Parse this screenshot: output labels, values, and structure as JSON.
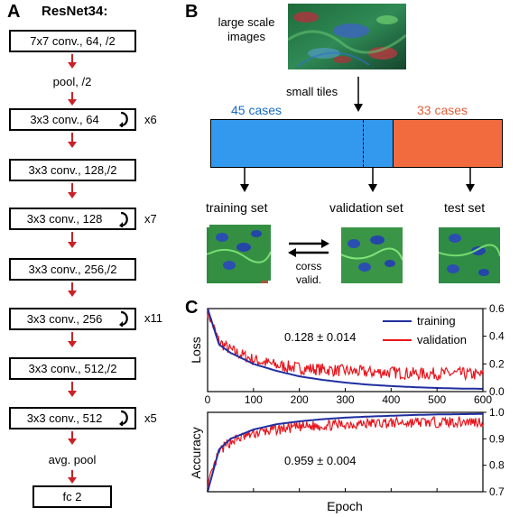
{
  "panel_a": {
    "letter": "A",
    "title": "ResNet34:",
    "boxes": [
      {
        "label": "7x7 conv., 64, /2"
      },
      {
        "label": "3x3 conv., 64",
        "repeat": "x6"
      },
      {
        "label": "3x3 conv., 128,/2"
      },
      {
        "label": "3x3 conv., 128",
        "repeat": "x7"
      },
      {
        "label": "3x3 conv., 256,/2"
      },
      {
        "label": "3x3 conv., 256",
        "repeat": "x11"
      },
      {
        "label": "3x3 conv., 512,/2"
      },
      {
        "label": "3x3 conv., 512",
        "repeat": "x5"
      },
      {
        "label": "fc 2"
      }
    ],
    "pool_label": "pool, /2",
    "avg_pool_label": "avg. pool",
    "arrow_color": "#cc2027"
  },
  "panel_b": {
    "letter": "B",
    "large_images_label": "large scale\nimages",
    "small_tiles_label": "small tiles",
    "cases_left": "45 cases",
    "cases_right": "33 cases",
    "training_label": "training set",
    "validation_label": "validation set",
    "test_label": "test set",
    "cross_valid_label": "corss\nvalid.",
    "colors": {
      "blue_bar": "#3399ee",
      "orange_bar": "#f26b3f",
      "case_blue": "#1769c4",
      "case_orange": "#e0603a"
    }
  },
  "panel_c": {
    "letter": "C",
    "xlabel": "Epoch",
    "legend": [
      "training",
      "validation"
    ],
    "colors": {
      "training": "#1f2fa0",
      "validation": "#e8141c"
    },
    "chart_data": [
      {
        "type": "line",
        "ylabel": "Loss",
        "annotation": "0.128 ± 0.014",
        "xlim": [
          0,
          600
        ],
        "ylim": [
          0,
          0.6
        ],
        "xticks": [
          "0",
          "100",
          "200",
          "300",
          "400",
          "500",
          "600"
        ],
        "yticks": [
          "0.0",
          "0.2",
          "0.4",
          "0.6"
        ],
        "series": [
          {
            "name": "training",
            "x": [
              0,
              25,
              50,
              100,
              150,
              200,
              250,
              300,
              350,
              400,
              450,
              500,
              550,
              600
            ],
            "y": [
              0.6,
              0.34,
              0.28,
              0.2,
              0.15,
              0.11,
              0.085,
              0.065,
              0.05,
              0.04,
              0.032,
              0.026,
              0.022,
              0.02
            ]
          },
          {
            "name": "validation",
            "x": [
              0,
              25,
              50,
              100,
              150,
              200,
              250,
              300,
              350,
              400,
              450,
              500,
              550,
              600
            ],
            "y": [
              0.58,
              0.36,
              0.3,
              0.23,
              0.19,
              0.17,
              0.16,
              0.15,
              0.14,
              0.14,
              0.13,
              0.13,
              0.13,
              0.12
            ]
          }
        ]
      },
      {
        "type": "line",
        "ylabel": "Accuracy",
        "annotation": "0.959 ± 0.004",
        "xlim": [
          0,
          600
        ],
        "ylim": [
          0.7,
          1.0
        ],
        "yticks": [
          "0.7",
          "0.8",
          "0.9",
          "1.0"
        ],
        "series": [
          {
            "name": "training",
            "x": [
              0,
              25,
              50,
              100,
              150,
              200,
              250,
              300,
              350,
              400,
              450,
              500,
              550,
              600
            ],
            "y": [
              0.7,
              0.86,
              0.9,
              0.935,
              0.955,
              0.966,
              0.974,
              0.98,
              0.984,
              0.987,
              0.99,
              0.992,
              0.993,
              0.994
            ]
          },
          {
            "name": "validation",
            "x": [
              0,
              25,
              50,
              100,
              150,
              200,
              250,
              300,
              350,
              400,
              450,
              500,
              550,
              600
            ],
            "y": [
              0.72,
              0.85,
              0.89,
              0.92,
              0.935,
              0.945,
              0.95,
              0.955,
              0.958,
              0.96,
              0.962,
              0.963,
              0.964,
              0.965
            ]
          }
        ]
      }
    ]
  }
}
